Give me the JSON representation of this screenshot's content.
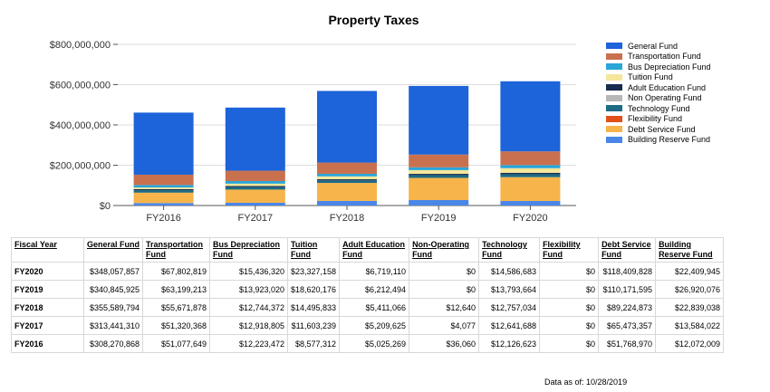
{
  "chart_data": {
    "type": "bar",
    "stacked": true,
    "title": "Property Taxes",
    "xlabel": "",
    "ylabel": "",
    "categories": [
      "FY2016",
      "FY2017",
      "FY2018",
      "FY2019",
      "FY2020"
    ],
    "ylim": [
      0,
      800000000
    ],
    "yticks": [
      0,
      200000000,
      400000000,
      600000000,
      800000000
    ],
    "ytick_labels": [
      "$0",
      "$200,000,000",
      "$400,000,000",
      "$600,000,000",
      "$800,000,000"
    ],
    "grid": true,
    "legend_position": "right",
    "series": [
      {
        "name": "Building Reserve Fund",
        "color": "#4a86e8",
        "values": [
          12072009,
          13584022,
          22839038,
          26920076,
          22409945
        ]
      },
      {
        "name": "Debt Service Fund",
        "color": "#f6b44a",
        "values": [
          51768970,
          65473357,
          89224873,
          110171595,
          118409828
        ]
      },
      {
        "name": "Flexibility Fund",
        "color": "#e0501a",
        "values": [
          0,
          0,
          0,
          0,
          0
        ]
      },
      {
        "name": "Technology Fund",
        "color": "#1e6b86",
        "values": [
          12126623,
          12641688,
          12757034,
          13793664,
          14586683
        ]
      },
      {
        "name": "Non Operating Fund",
        "color": "#b7b7b7",
        "values": [
          36060,
          4077,
          12640,
          0,
          0
        ]
      },
      {
        "name": "Adult Education Fund",
        "color": "#172c4e",
        "values": [
          5025269,
          5209625,
          5411066,
          6212494,
          6719110
        ]
      },
      {
        "name": "Tuition Fund",
        "color": "#f5e79a",
        "values": [
          8577312,
          11603239,
          14495833,
          18620176,
          23327158
        ]
      },
      {
        "name": "Bus Depreciation Fund",
        "color": "#2aa5d8",
        "values": [
          12223472,
          12918805,
          12744372,
          13923020,
          15436320
        ]
      },
      {
        "name": "Transportation Fund",
        "color": "#c9714f",
        "values": [
          51077649,
          51320368,
          55671878,
          63199213,
          67802819
        ]
      },
      {
        "name": "General Fund",
        "color": "#1d63d9",
        "values": [
          308270868,
          313441310,
          355589794,
          340845925,
          348057857
        ]
      }
    ]
  },
  "legend": {
    "items": [
      {
        "label": "General Fund",
        "color": "#1d63d9"
      },
      {
        "label": "Transportation Fund",
        "color": "#c9714f"
      },
      {
        "label": "Bus Depreciation Fund",
        "color": "#2aa5d8"
      },
      {
        "label": "Tuition Fund",
        "color": "#f5e79a"
      },
      {
        "label": "Adult Education Fund",
        "color": "#172c4e"
      },
      {
        "label": "Non Operating Fund",
        "color": "#b7b7b7"
      },
      {
        "label": "Technology Fund",
        "color": "#1e6b86"
      },
      {
        "label": "Flexibility Fund",
        "color": "#e0501a"
      },
      {
        "label": "Debt Service Fund",
        "color": "#f6b44a"
      },
      {
        "label": "Building Reserve Fund",
        "color": "#4a86e8"
      }
    ]
  },
  "table": {
    "headers": [
      "Fiscal Year",
      "General Fund",
      "Transportation Fund",
      "Bus Depreciation Fund",
      "Tuition Fund",
      "Adult Education Fund",
      "Non-Operating Fund",
      "Technology Fund",
      "Flexibility Fund",
      "Debt Service Fund",
      "Building Reserve Fund"
    ],
    "rows": [
      [
        "FY2020",
        "$348,057,857",
        "$67,802,819",
        "$15,436,320",
        "$23,327,158",
        "$6,719,110",
        "$0",
        "$14,586,683",
        "$0",
        "$118,409,828",
        "$22,409,945"
      ],
      [
        "FY2019",
        "$340,845,925",
        "$63,199,213",
        "$13,923,020",
        "$18,620,176",
        "$6,212,494",
        "$0",
        "$13,793,664",
        "$0",
        "$110,171,595",
        "$26,920,076"
      ],
      [
        "FY2018",
        "$355,589,794",
        "$55,671,878",
        "$12,744,372",
        "$14,495,833",
        "$5,411,066",
        "$12,640",
        "$12,757,034",
        "$0",
        "$89,224,873",
        "$22,839,038"
      ],
      [
        "FY2017",
        "$313,441,310",
        "$51,320,368",
        "$12,918,805",
        "$11,603,239",
        "$5,209,625",
        "$4,077",
        "$12,641,688",
        "$0",
        "$65,473,357",
        "$13,584,022"
      ],
      [
        "FY2016",
        "$308,270,868",
        "$51,077,649",
        "$12,223,472",
        "$8,577,312",
        "$5,025,269",
        "$36,060",
        "$12,126,623",
        "$0",
        "$51,768,970",
        "$12,072,009"
      ]
    ]
  },
  "footer": {
    "as_of": "Data as of: 10/28/2019"
  }
}
